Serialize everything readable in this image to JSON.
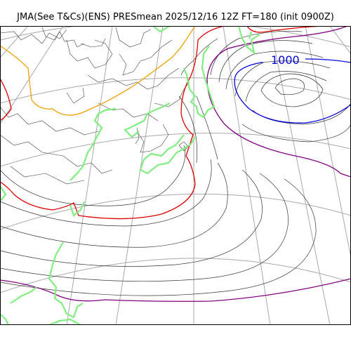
{
  "header": {
    "title": "JMA(See T&Cs)(ENS) PRESmean 2025/12/16 12Z FT=180 (init 0900Z)"
  },
  "map": {
    "isobar_labels": [
      {
        "name": "isobar-label-1000",
        "text": "1000",
        "color": "#0000dd"
      }
    ],
    "colors": {
      "isobar_1000": "#0000dd",
      "isobar_1008": "#800080",
      "isobar_1016": "#e00000",
      "isobar_1020": "#f0a000",
      "coastline_highlight": "#80ee80",
      "grid": "#a8a8a8"
    }
  }
}
